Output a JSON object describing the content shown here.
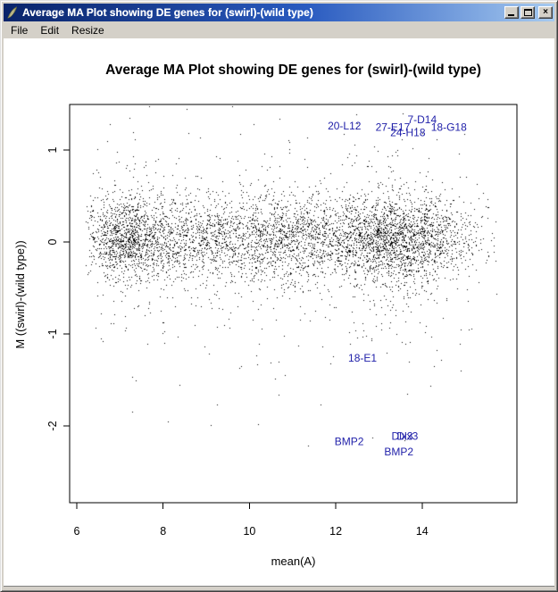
{
  "window": {
    "title": "Average MA Plot showing DE genes for (swirl)-(wild type)",
    "icons": {
      "window_icon": "r-graphics-feather",
      "minimize": "_",
      "maximize": "□",
      "close": "×"
    }
  },
  "menubar": {
    "items": [
      {
        "label": "File"
      },
      {
        "label": "Edit"
      },
      {
        "label": "Resize"
      }
    ]
  },
  "chart_data": {
    "type": "scatter",
    "title": "Average MA Plot showing DE genes for (swirl)-(wild type)",
    "xlabel": "mean(A)",
    "ylabel": "M ((swirl)-(wild type))",
    "xlim": [
      5.8,
      16.2
    ],
    "ylim": [
      -2.84,
      1.5
    ],
    "xticks": [
      6,
      8,
      10,
      12,
      14
    ],
    "yticks": [
      -2,
      -1,
      0,
      1
    ],
    "grid": false,
    "point_color": "#000000",
    "label_color": "#2222aa",
    "labeled_genes": [
      {
        "label": "20-L12",
        "x": 12.2,
        "y": 1.26
      },
      {
        "label": "27-E17",
        "x": 13.32,
        "y": 1.25
      },
      {
        "label": "7-D14",
        "x": 14.0,
        "y": 1.33
      },
      {
        "label": "24-H18",
        "x": 13.67,
        "y": 1.19
      },
      {
        "label": "18-G18",
        "x": 14.62,
        "y": 1.25
      },
      {
        "label": "18-E1",
        "x": 12.62,
        "y": -1.26
      },
      {
        "label": "BMP2",
        "x": 12.31,
        "y": -2.17
      },
      {
        "label": "Dlx3",
        "x": 13.54,
        "y": -2.11
      },
      {
        "label": "Dlx3",
        "x": 13.66,
        "y": -2.11
      },
      {
        "label": "BMP2",
        "x": 13.46,
        "y": -2.28
      }
    ],
    "cloud": {
      "description": "Dense background scatter of ~6000 genes centered on M=0, densest near mean(A)=13-14.5",
      "seed": 42,
      "n": 6000,
      "x_range": [
        6.2,
        15.75
      ],
      "x_mixture": [
        {
          "w": 0.2,
          "mean": 7.15,
          "sd": 0.5
        },
        {
          "w": 0.1,
          "mean": 8.4,
          "sd": 0.7
        },
        {
          "w": 0.25,
          "mean": 10.4,
          "sd": 1.15
        },
        {
          "w": 0.33,
          "mean": 13.45,
          "sd": 0.8
        },
        {
          "w": 0.12,
          "mean": 12.3,
          "sd": 2.0
        }
      ],
      "y_components": [
        {
          "w": 0.8,
          "mean": 0.04,
          "sd": 0.22
        },
        {
          "w": 0.15,
          "mean": 0.0,
          "sd": 0.45
        },
        {
          "w": 0.05,
          "mean": -0.1,
          "sd": 0.85
        }
      ]
    }
  }
}
